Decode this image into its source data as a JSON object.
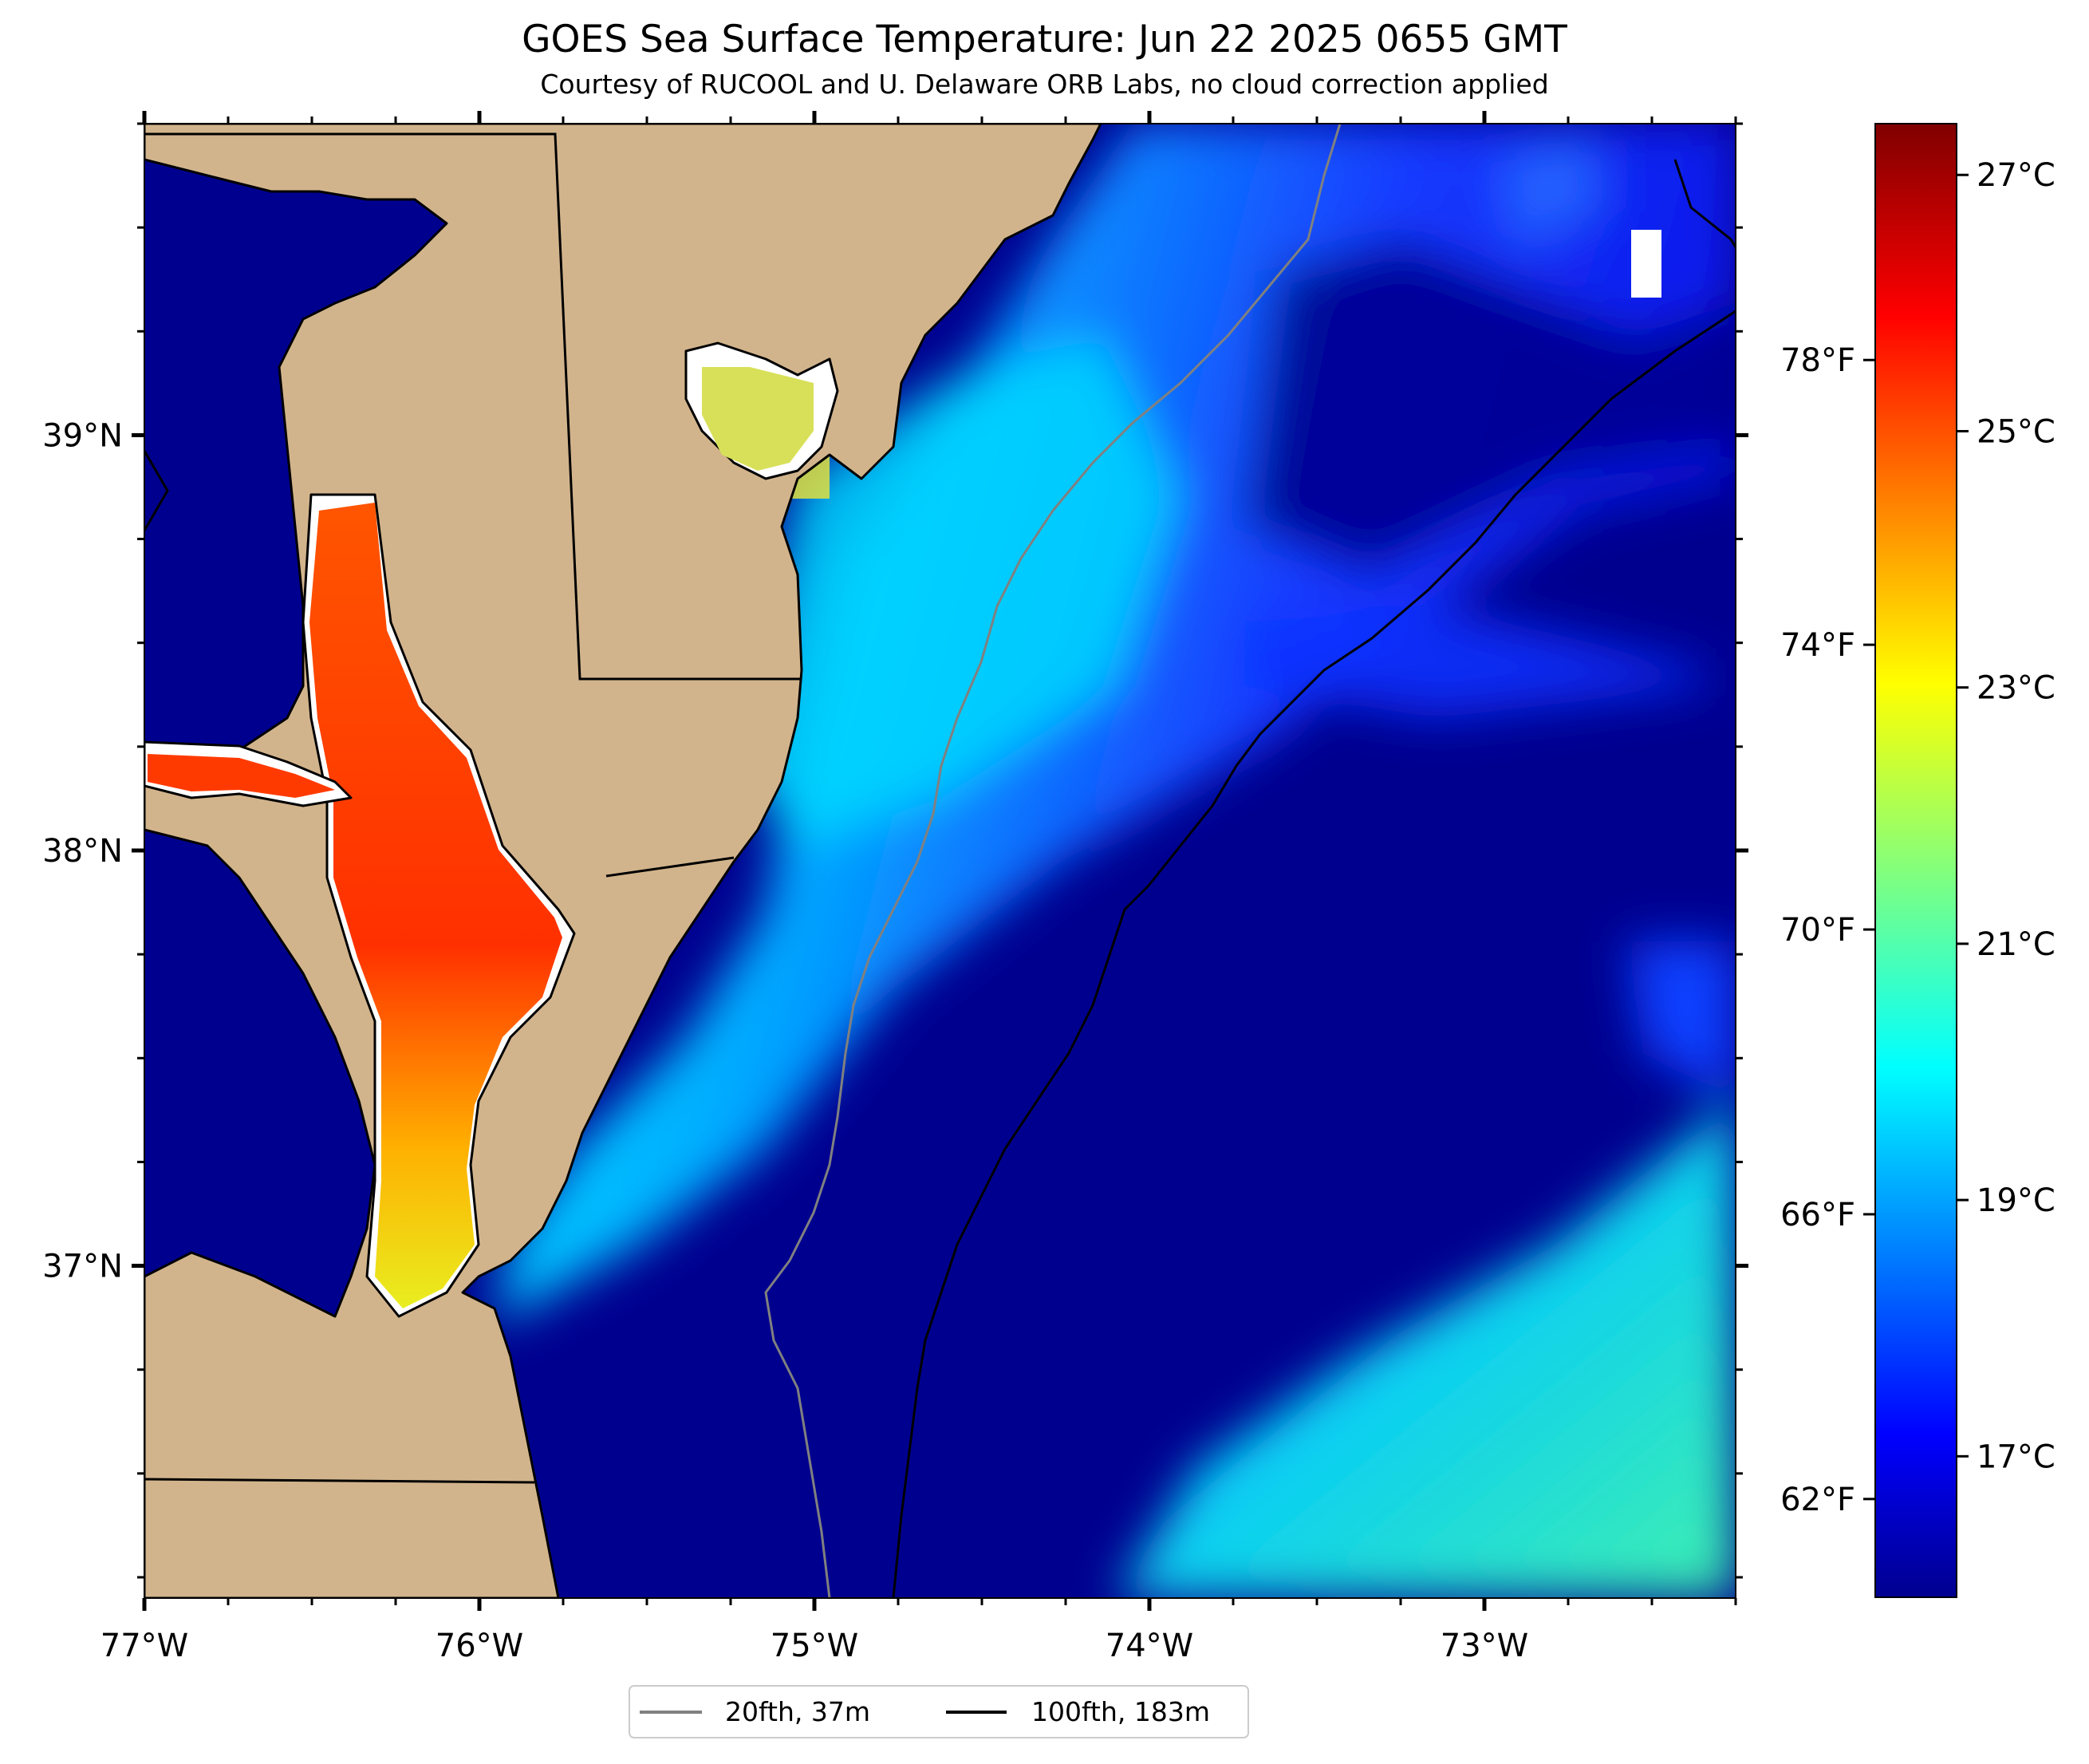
{
  "title": "GOES Sea Surface Temperature: Jun 22 2025 0655 GMT",
  "subtitle": "Courtesy of RUCOOL and U. Delaware ORB Labs, no cloud correction applied",
  "map": {
    "lon_range": [
      -77,
      -72.25
    ],
    "lat_range": [
      36.2,
      39.75
    ],
    "lon_ticks": [
      {
        "v": -77,
        "label": "77°W"
      },
      {
        "v": -76,
        "label": "76°W"
      },
      {
        "v": -75,
        "label": "75°W"
      },
      {
        "v": -74,
        "label": "74°W"
      },
      {
        "v": -73,
        "label": "73°W"
      }
    ],
    "lat_ticks": [
      {
        "v": 39,
        "label": "39°N"
      },
      {
        "v": 38,
        "label": "38°N"
      },
      {
        "v": 37,
        "label": "37°N"
      }
    ],
    "land_color": "#d2b48c",
    "coast_color": "#000000"
  },
  "colorbar": {
    "colormap": "jet",
    "range_c": [
      15.9,
      27.4
    ],
    "celsius_ticks": [
      {
        "v": 17,
        "label": "17°C"
      },
      {
        "v": 19,
        "label": "19°C"
      },
      {
        "v": 21,
        "label": "21°C"
      },
      {
        "v": 23,
        "label": "23°C"
      },
      {
        "v": 25,
        "label": "25°C"
      },
      {
        "v": 27,
        "label": "27°C"
      }
    ],
    "fahrenheit_ticks": [
      {
        "v": 62,
        "label": "62°F"
      },
      {
        "v": 66,
        "label": "66°F"
      },
      {
        "v": 70,
        "label": "70°F"
      },
      {
        "v": 74,
        "label": "74°F"
      },
      {
        "v": 78,
        "label": "78°F"
      }
    ]
  },
  "legend": {
    "items": [
      {
        "label": "20fth, 37m",
        "color": "#808080"
      },
      {
        "label": "100fth, 183m",
        "color": "#000000"
      }
    ]
  }
}
